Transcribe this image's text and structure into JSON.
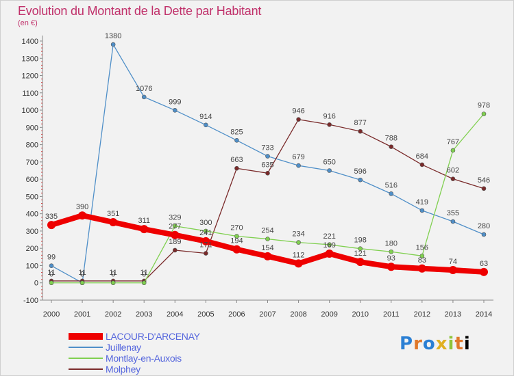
{
  "header": {
    "title": "Evolution du Montant de la Dette par Habitant",
    "unit": "(en €)"
  },
  "logo": {
    "letters": [
      "P",
      "r",
      "o",
      "x",
      "i",
      "t",
      "i"
    ]
  },
  "chart_data": {
    "type": "line",
    "title": "Evolution du Montant de la Dette par Habitant",
    "subtitle": "(en €)",
    "xlabel": "",
    "ylabel": "",
    "x": [
      2000,
      2001,
      2002,
      2003,
      2004,
      2005,
      2006,
      2007,
      2008,
      2009,
      2010,
      2011,
      2012,
      2013,
      2014
    ],
    "ylim": [
      -100,
      1400
    ],
    "yticks": [
      -100,
      0,
      100,
      200,
      300,
      400,
      500,
      600,
      700,
      800,
      900,
      1000,
      1100,
      1200,
      1300,
      1400
    ],
    "grid": false,
    "legend_position": "bottom-left",
    "series": [
      {
        "name": "LACOUR-D'ARCENAY",
        "color": "#ee0000",
        "values": [
          335,
          390,
          351,
          311,
          277,
          241,
          194,
          154,
          112,
          169,
          121,
          93,
          83,
          74,
          63
        ],
        "labels": [
          "335",
          "390",
          "351",
          "311",
          "277",
          "241",
          "194",
          "154",
          "112",
          "169",
          "121",
          "93",
          "83",
          "74",
          "63"
        ]
      },
      {
        "name": "Juillenay",
        "color": "#4f8fc8",
        "values": [
          99,
          0,
          1380,
          1076,
          999,
          914,
          825,
          733,
          679,
          650,
          596,
          516,
          419,
          355,
          280
        ],
        "labels": [
          "99",
          "0",
          "1380",
          "1076",
          "999",
          "914",
          "825",
          "733",
          "679",
          "650",
          "596",
          "516",
          "419",
          "355",
          "280"
        ]
      },
      {
        "name": "Montlay-en-Auxois",
        "color": "#80d050",
        "values": [
          0,
          0,
          0,
          0,
          329,
          300,
          270,
          254,
          234,
          221,
          198,
          180,
          156,
          767,
          978
        ],
        "labels": [
          "0",
          "0",
          "0",
          "0",
          "329",
          "300",
          "270",
          "254",
          "234",
          "221",
          "198",
          "180",
          "156",
          "767",
          "978"
        ]
      },
      {
        "name": "Molphey",
        "color": "#7a2a2a",
        "values": [
          11,
          11,
          11,
          11,
          189,
          171,
          663,
          635,
          946,
          916,
          877,
          788,
          684,
          602,
          546
        ],
        "labels": [
          "11",
          "11",
          "11",
          "11",
          "189",
          "171",
          "663",
          "635",
          "946",
          "916",
          "877",
          "788",
          "684",
          "602",
          "546"
        ]
      }
    ]
  }
}
